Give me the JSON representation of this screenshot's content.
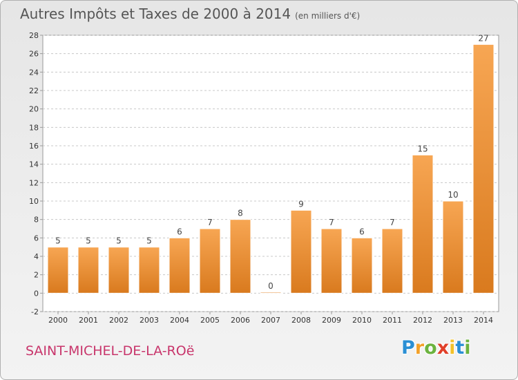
{
  "header": {
    "title": "Autres Impôts et Taxes de 2000 à 2014",
    "subtitle": "(en milliers d'€)"
  },
  "footer": {
    "commune": "SAINT-MICHEL-DE-LA-ROë",
    "brand_letters": [
      {
        "char": "P",
        "color": "#2a8fd4"
      },
      {
        "char": "r",
        "color": "#f2a12a"
      },
      {
        "char": "o",
        "color": "#6cb33f"
      },
      {
        "char": "x",
        "color": "#e0402a"
      },
      {
        "char": "i",
        "color": "#f2c12a"
      },
      {
        "char": "t",
        "color": "#2a8fd4"
      },
      {
        "char": "i",
        "color": "#6cb33f"
      }
    ]
  },
  "colors": {
    "bar_top": "#f7a653",
    "bar_bottom": "#d97a1e",
    "grid": "#c8c8c8",
    "axis_text": "#333333"
  },
  "chart_data": {
    "type": "bar",
    "title": "Autres Impôts et Taxes de 2000 à 2014",
    "subtitle": "(en milliers d'€)",
    "categories": [
      "2000",
      "2001",
      "2002",
      "2003",
      "2004",
      "2005",
      "2006",
      "2007",
      "2008",
      "2009",
      "2010",
      "2011",
      "2012",
      "2013",
      "2014"
    ],
    "values": [
      5,
      5,
      5,
      5,
      6,
      7,
      8,
      0,
      9,
      7,
      6,
      7,
      15,
      10,
      27
    ],
    "ylim": [
      -2,
      28
    ],
    "yticks": [
      -2,
      0,
      2,
      4,
      6,
      8,
      10,
      12,
      14,
      16,
      18,
      20,
      22,
      24,
      26,
      28
    ],
    "grid": true,
    "xlabel": "",
    "ylabel": ""
  }
}
